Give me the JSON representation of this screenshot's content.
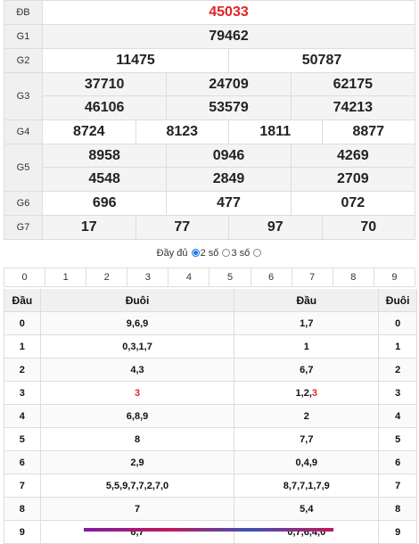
{
  "results": [
    {
      "label": "ĐB",
      "values": [
        "45033"
      ],
      "red": true
    },
    {
      "label": "G1",
      "values": [
        "79462"
      ]
    },
    {
      "label": "G2",
      "values": [
        "11475",
        "50787"
      ]
    },
    {
      "label": "G3",
      "values": [
        "37710",
        "24709",
        "62175",
        "46106",
        "53579",
        "74213"
      ]
    },
    {
      "label": "G4",
      "values": [
        "8724",
        "8123",
        "1811",
        "8877"
      ]
    },
    {
      "label": "G5",
      "values": [
        "8958",
        "0946",
        "4269",
        "4548",
        "2849",
        "2709"
      ]
    },
    {
      "label": "G6",
      "values": [
        "696",
        "477",
        "072"
      ]
    },
    {
      "label": "G7",
      "values": [
        "17",
        "77",
        "97",
        "70"
      ]
    }
  ],
  "options": {
    "full": "Đầy đủ",
    "two": "2 số",
    "three": "3 số",
    "selected": "two"
  },
  "digits": [
    "0",
    "1",
    "2",
    "3",
    "4",
    "5",
    "6",
    "7",
    "8",
    "9"
  ],
  "loto": {
    "headers": [
      "Đầu",
      "Đuôi",
      "Đầu",
      "Đuôi"
    ],
    "rows": [
      {
        "d": "0",
        "tail": "9,6,9",
        "head": "1,7",
        "t": "0"
      },
      {
        "d": "1",
        "tail": "0,3,1,7",
        "head": "1",
        "t": "1"
      },
      {
        "d": "2",
        "tail": "4,3",
        "head": "6,7",
        "t": "2"
      },
      {
        "d": "3",
        "tail": "3",
        "head": "1,2,3",
        "t": "3"
      },
      {
        "d": "4",
        "tail": "6,8,9",
        "head": "2",
        "t": "4"
      },
      {
        "d": "5",
        "tail": "8",
        "head": "7,7",
        "t": "5"
      },
      {
        "d": "6",
        "tail": "2,9",
        "head": "0,4,9",
        "t": "6"
      },
      {
        "d": "7",
        "tail": "5,5,9,7,7,2,7,0",
        "head": "8,7,7,1,7,9",
        "t": "7"
      },
      {
        "d": "8",
        "tail": "7",
        "head": "5,4",
        "t": "8"
      },
      {
        "d": "9",
        "tail": "6,7",
        "head": "0,7,6,4,0",
        "t": "9"
      }
    ]
  },
  "colors": {
    "accent_red": "#e02424",
    "radio": "#1a73e8"
  }
}
